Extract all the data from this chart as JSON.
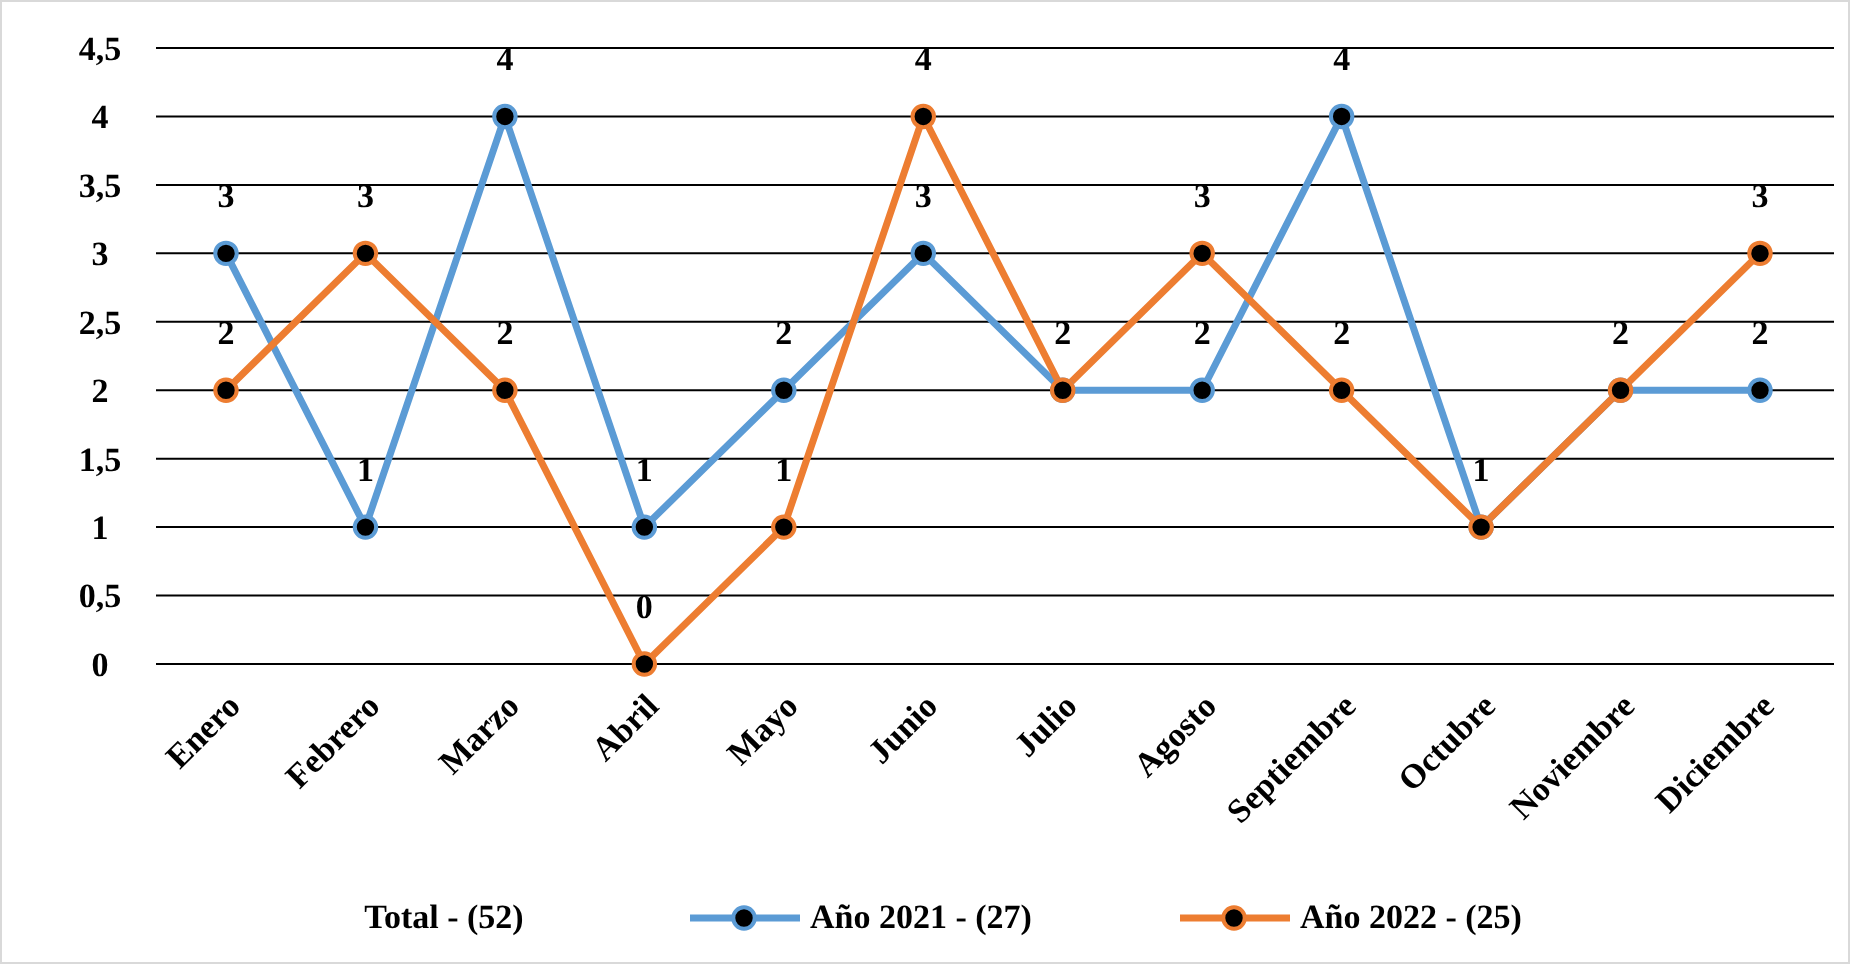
{
  "chart_data": {
    "type": "line",
    "categories": [
      "Enero",
      "Febrero",
      "Marzo",
      "Abril",
      "Mayo",
      "Junio",
      "Julio",
      "Agosto",
      "Septiembre",
      "Octubre",
      "Noviembre",
      "Diciembre"
    ],
    "series": [
      {
        "name": "Año 2021 - (27)",
        "color": "#5b9bd5",
        "values": [
          3,
          1,
          4,
          1,
          2,
          3,
          2,
          2,
          4,
          1,
          2,
          2
        ],
        "value_labels": [
          "3",
          "1",
          "4",
          "1",
          "2",
          "3",
          "2",
          "2",
          "4",
          "1",
          "2",
          "2"
        ]
      },
      {
        "name": "Año 2022 - (25)",
        "color": "#ed7d31",
        "values": [
          2,
          3,
          2,
          0,
          1,
          4,
          2,
          3,
          2,
          1,
          2,
          3
        ],
        "value_labels": [
          "2",
          "3",
          "2",
          "0",
          "1",
          "4",
          null,
          "3",
          "2",
          null,
          null,
          "3"
        ]
      }
    ],
    "ylim": [
      0,
      4.5
    ],
    "yticks": [
      0,
      {
        "value": 0.5,
        "label": "0,5"
      },
      1,
      {
        "value": 1.5,
        "label": "1,5"
      },
      2,
      {
        "value": 2.5,
        "label": "2,5"
      },
      3,
      {
        "value": 3.5,
        "label": "3,5"
      },
      4,
      {
        "value": 4.5,
        "label": "4,5"
      }
    ],
    "grid": "y",
    "legend": "bottom",
    "legend_title": "Total - (52)",
    "marker": "circle",
    "line_style": "solid"
  }
}
